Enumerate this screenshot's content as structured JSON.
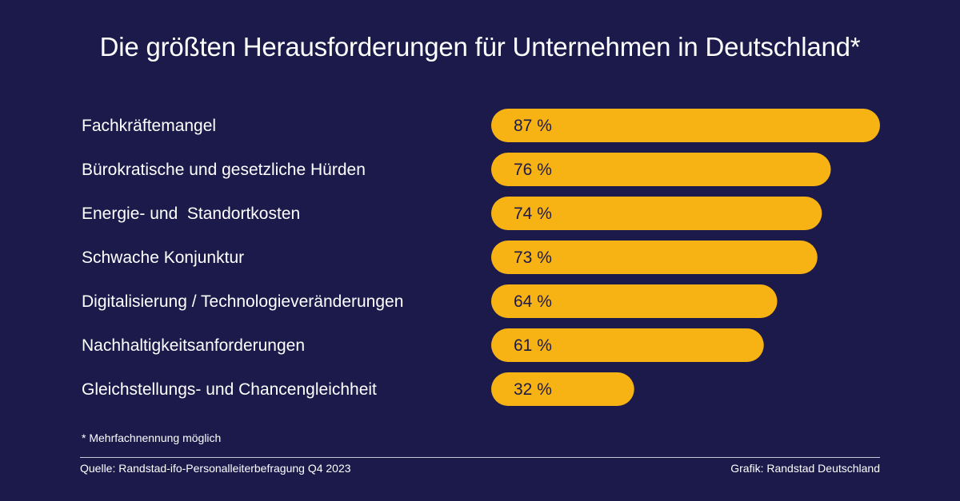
{
  "header": {
    "title": "Die größten Herausforderungen für Unternehmen in Deutschland*"
  },
  "colors": {
    "background": "#1b1a4b",
    "bar": "#f7b214",
    "text": "#ffffff",
    "value_text": "#1b1a4b"
  },
  "chart_data": {
    "type": "bar",
    "orientation": "horizontal",
    "title": "Die größten Herausforderungen für Unternehmen in Deutschland*",
    "categories": [
      "Fachkräftemangel",
      "Bürokratische und gesetzliche Hürden",
      "Energie- und  Standortkosten",
      "Schwache Konjunktur",
      "Digitalisierung / Technologieveränderungen",
      "Nachhaltigkeitsanforderungen",
      "Gleichstellungs- und Chancengleichheit"
    ],
    "values": [
      87,
      76,
      74,
      73,
      64,
      61,
      32
    ],
    "value_labels": [
      "87 %",
      "76 %",
      "74 %",
      "73 %",
      "64 %",
      "61 %",
      "32 %"
    ],
    "unit": "%",
    "xlim": [
      0,
      100
    ],
    "grid": false,
    "legend": "none"
  },
  "footer": {
    "footnote": "* Mehrfachnennung möglich",
    "source": "Quelle: Randstad-ifo-Personalleiterbefragung Q4 2023",
    "credit": "Grafik: Randstad Deutschland"
  }
}
